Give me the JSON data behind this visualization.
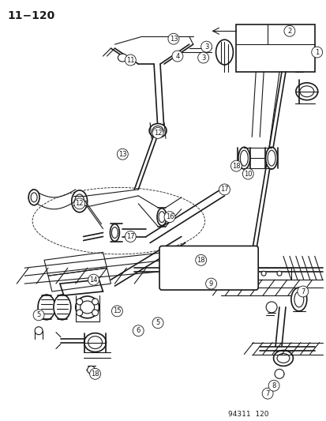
{
  "page_id": "11−120",
  "catalog_num": "94311  120",
  "bg_color": "#ffffff",
  "line_color": "#1a1a1a",
  "fig_width": 4.14,
  "fig_height": 5.33,
  "dpi": 100
}
